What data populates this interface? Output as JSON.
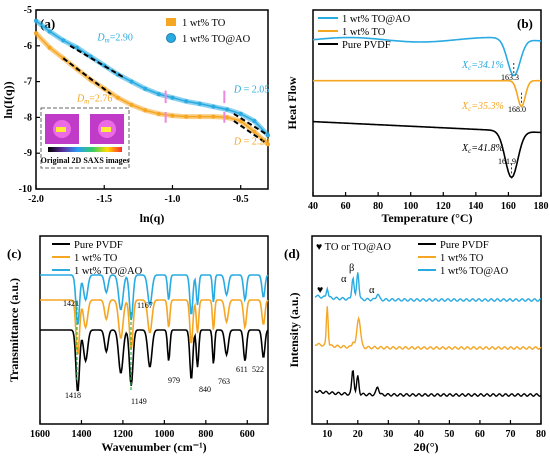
{
  "colors": {
    "blue": "#29abe2",
    "orange": "#f5a623",
    "black": "#000000",
    "pink": "#ee88dd",
    "green": "#2db34a",
    "teal": "#2aa198"
  },
  "chart_data": [
    {
      "panel": "(a)",
      "type": "line",
      "xlabel": "ln(q)",
      "ylabel": "ln(I(q))",
      "xlim": [
        -2.0,
        -0.3
      ],
      "ylim": [
        -10,
        -5
      ],
      "xticks": [
        -2.0,
        -1.5,
        -1.0,
        -0.5
      ],
      "yticks": [
        -10,
        -9,
        -8,
        -7,
        -6,
        -5
      ],
      "legend": [
        "1 wt% TO",
        "1 wt% TO@AO"
      ],
      "series": [
        {
          "name": "1 wt% TO@AO",
          "color": "blue",
          "x": [
            -2.0,
            -1.9,
            -1.8,
            -1.7,
            -1.6,
            -1.5,
            -1.4,
            -1.3,
            -1.2,
            -1.1,
            -1.0,
            -0.9,
            -0.8,
            -0.7,
            -0.6,
            -0.5,
            -0.4,
            -0.3
          ],
          "y": [
            -5.3,
            -5.6,
            -5.85,
            -6.05,
            -6.3,
            -6.55,
            -6.8,
            -7.0,
            -7.2,
            -7.35,
            -7.45,
            -7.55,
            -7.62,
            -7.7,
            -7.78,
            -7.9,
            -8.1,
            -8.5
          ]
        },
        {
          "name": "1 wt% TO",
          "color": "orange",
          "x": [
            -2.0,
            -1.9,
            -1.8,
            -1.7,
            -1.6,
            -1.5,
            -1.4,
            -1.3,
            -1.2,
            -1.1,
            -1.0,
            -0.9,
            -0.8,
            -0.7,
            -0.6,
            -0.5,
            -0.4,
            -0.3
          ],
          "y": [
            -5.65,
            -6.05,
            -6.35,
            -6.65,
            -6.95,
            -7.2,
            -7.45,
            -7.65,
            -7.8,
            -7.9,
            -7.95,
            -7.98,
            -7.98,
            -7.98,
            -8.0,
            -8.1,
            -8.4,
            -8.75
          ]
        }
      ],
      "annotations": [
        {
          "text": "D",
          "sub": "m",
          "val": "=2.90",
          "x": -1.55,
          "y": -5.85,
          "color": "blue"
        },
        {
          "text": "D",
          "sub": "m",
          "val": "=2.76",
          "x": -1.7,
          "y": -7.55,
          "color": "orange"
        },
        {
          "text": "D",
          "sub": "",
          "val": " = 2.05",
          "x": -0.55,
          "y": -7.3,
          "color": "blue"
        },
        {
          "text": "D",
          "sub": "",
          "val": " = 2.29",
          "x": -0.55,
          "y": -8.75,
          "color": "orange"
        }
      ],
      "markers_x": [
        -1.05,
        -0.62
      ],
      "inset_label": "Original 2D SAXS images"
    },
    {
      "panel": "(b)",
      "type": "line",
      "xlabel": "Temperature (°C)",
      "ylabel": "Heat Flow",
      "xlim": [
        40,
        180
      ],
      "xticks": [
        40,
        60,
        80,
        100,
        120,
        140,
        160,
        180
      ],
      "legend": [
        "1 wt% TO@AO",
        "1 wt% TO",
        "Pure PVDF"
      ],
      "series": [
        {
          "name": "1 wt% TO@AO",
          "color": "blue",
          "peak": 163.3,
          "base": 0.84,
          "depth": 0.2
        },
        {
          "name": "1 wt% TO",
          "color": "orange",
          "peak": 168.0,
          "base": 0.62,
          "depth": 0.14
        },
        {
          "name": "Pure PVDF",
          "color": "black",
          "peak": 161.9,
          "base": 0.35,
          "depth": 0.25
        }
      ],
      "labels": [
        {
          "text": "X",
          "sub": "c",
          "val": "=34.1%",
          "color": "blue"
        },
        {
          "text": "X",
          "sub": "c",
          "val": "=35.3%",
          "color": "orange"
        },
        {
          "text": "X",
          "sub": "c",
          "val": "=41.8%",
          "color": "black"
        }
      ],
      "peak_labels": [
        "163.3",
        "168.0",
        "161.9"
      ]
    },
    {
      "panel": "(c)",
      "type": "line",
      "xlabel": "Wavenumber (cm⁻¹)",
      "ylabel": "Transmittance (a.u.)",
      "xlim": [
        1600,
        500
      ],
      "xticks": [
        1600,
        1400,
        1200,
        1000,
        800,
        600
      ],
      "legend": [
        "Pure PVDF",
        "1 wt% TO",
        "1 wt% TO@AO"
      ],
      "series": [
        {
          "name": "Pure PVDF",
          "color": "black"
        },
        {
          "name": "1 wt% TO",
          "color": "orange"
        },
        {
          "name": "1 wt% TO@AO",
          "color": "blue"
        }
      ],
      "peak_labels": [
        "1421",
        "1167",
        "1418",
        "1149",
        "979",
        "840",
        "763",
        "611",
        "522"
      ]
    },
    {
      "panel": "(d)",
      "type": "line",
      "xlabel": "2θ(°)",
      "ylabel": "Intensity (a.u.)",
      "xlim": [
        5,
        80
      ],
      "xticks": [
        10,
        20,
        30,
        40,
        50,
        60,
        70,
        80
      ],
      "legend": [
        "Pure PVDF",
        "1 wt% TO",
        "1 wt% TO@AO"
      ],
      "legend_note": "♥ TO or TO@AO",
      "series": [
        {
          "name": "Pure PVDF",
          "color": "black"
        },
        {
          "name": "1 wt% TO",
          "color": "orange"
        },
        {
          "name": "1 wt% TO@AO",
          "color": "blue"
        }
      ],
      "peak_marks": [
        "♥",
        "α",
        "β",
        "α"
      ]
    }
  ]
}
